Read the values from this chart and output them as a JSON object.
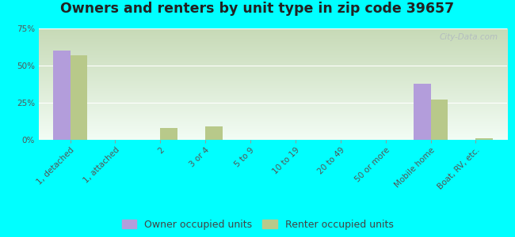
{
  "title": "Owners and renters by unit type in zip code 39657",
  "categories": [
    "1, detached",
    "1, attached",
    "2",
    "3 or 4",
    "5 to 9",
    "10 to 19",
    "20 to 49",
    "50 or more",
    "Mobile home",
    "Boat, RV, etc."
  ],
  "owner_values": [
    60,
    0,
    0,
    0,
    0,
    0,
    0,
    0,
    38,
    0
  ],
  "renter_values": [
    57,
    0,
    8,
    9,
    0,
    0,
    0,
    0,
    27,
    1
  ],
  "owner_color": "#b39ddb",
  "renter_color": "#b8c98a",
  "background_color": "#00ffff",
  "ylim": [
    0,
    75
  ],
  "yticks": [
    0,
    25,
    50,
    75
  ],
  "ytick_labels": [
    "0%",
    "25%",
    "50%",
    "75%"
  ],
  "bar_width": 0.38,
  "legend_owner": "Owner occupied units",
  "legend_renter": "Renter occupied units",
  "watermark": "City-Data.com",
  "title_fontsize": 12.5,
  "tick_fontsize": 7.5,
  "legend_fontsize": 9
}
